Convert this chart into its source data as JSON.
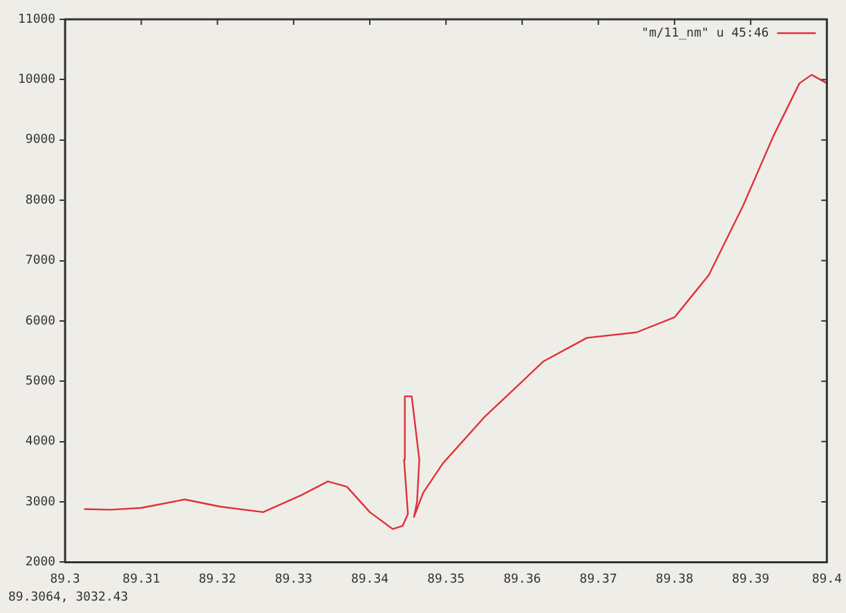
{
  "chart_data": {
    "type": "line",
    "x": [
      89.3025,
      89.306,
      89.31,
      89.3157,
      89.3204,
      89.326,
      89.331,
      89.3345,
      89.337,
      89.34,
      89.343,
      89.3443,
      89.345,
      89.3445,
      89.3446,
      89.3455,
      89.3465,
      89.3462,
      89.3458,
      89.347,
      89.3496,
      89.355,
      89.3628,
      89.3685,
      89.375,
      89.38,
      89.3845,
      89.389,
      89.393,
      89.3964,
      89.398,
      89.4
    ],
    "series": [
      {
        "name": "\"m/11_nm\" u 45:46",
        "color": "#e0303a",
        "values": [
          2880,
          2870,
          2900,
          3040,
          2920,
          2830,
          3110,
          3340,
          3250,
          2830,
          2550,
          2600,
          2800,
          3700,
          4750,
          4750,
          3700,
          3000,
          2750,
          3150,
          3640,
          4400,
          5330,
          5720,
          5810,
          6060,
          6760,
          7910,
          9070,
          9940,
          10080,
          9940
        ]
      }
    ],
    "xlim": [
      89.3,
      89.4
    ],
    "xticks": [
      89.3,
      89.31,
      89.32,
      89.33,
      89.34,
      89.35,
      89.36,
      89.37,
      89.38,
      89.39,
      89.4
    ],
    "ylim": [
      2000,
      11000
    ],
    "yticks": [
      2000,
      3000,
      4000,
      5000,
      6000,
      7000,
      8000,
      9000,
      10000,
      11000
    ],
    "grid": false,
    "legend": "top right",
    "marker": "none",
    "line_style": "solid",
    "annotations": [
      "89.3064, 3032.43"
    ]
  }
}
